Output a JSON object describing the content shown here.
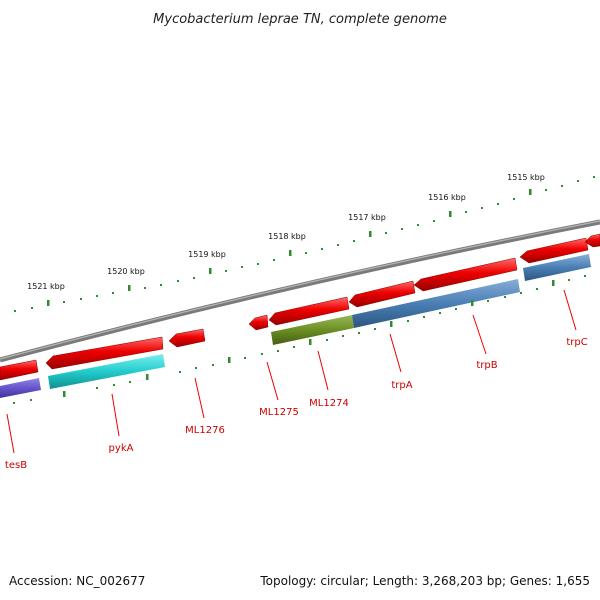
{
  "title": "Mycobacterium leprae TN, complete genome",
  "footer": {
    "accession": "Accession: NC_002677",
    "summary": "Topology: circular; Length: 3,268,203 bp; Genes: 1,655"
  },
  "ruler": {
    "labels": [
      "1521 kbp",
      "1520 kbp",
      "1519 kbp",
      "1518 kbp",
      "1517 kbp",
      "1516 kbp",
      "1515 kbp"
    ]
  },
  "gene_labels": [
    "tesB",
    "pykA",
    "ML1276",
    "ML1275",
    "ML1274",
    "trpA",
    "trpB",
    "trpC"
  ],
  "colors": {
    "backbone": "#7a7a7a",
    "cds": "#ee0000",
    "ruler": "#2e8b2e",
    "label": "#cc0000",
    "tesB": "#6655cc",
    "pykA": "#22cccc",
    "ML1274": "#6b8e23",
    "trp": "#4a7fb5"
  }
}
